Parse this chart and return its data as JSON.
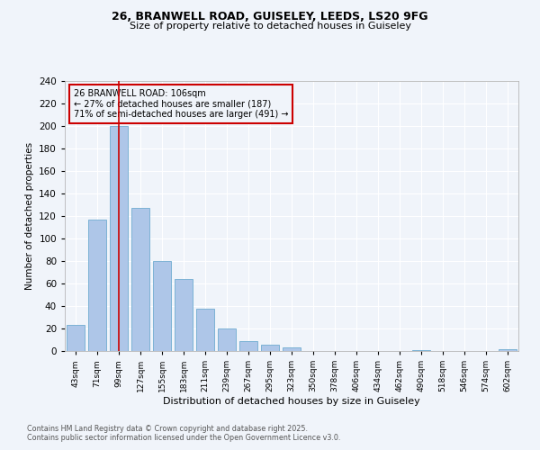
{
  "title1": "26, BRANWELL ROAD, GUISELEY, LEEDS, LS20 9FG",
  "title2": "Size of property relative to detached houses in Guiseley",
  "xlabel": "Distribution of detached houses by size in Guiseley",
  "ylabel": "Number of detached properties",
  "categories": [
    "43sqm",
    "71sqm",
    "99sqm",
    "127sqm",
    "155sqm",
    "183sqm",
    "211sqm",
    "239sqm",
    "267sqm",
    "295sqm",
    "323sqm",
    "350sqm",
    "378sqm",
    "406sqm",
    "434sqm",
    "462sqm",
    "490sqm",
    "518sqm",
    "546sqm",
    "574sqm",
    "602sqm"
  ],
  "values": [
    23,
    117,
    200,
    127,
    80,
    64,
    38,
    20,
    9,
    6,
    3,
    0,
    0,
    0,
    0,
    0,
    1,
    0,
    0,
    0,
    2
  ],
  "bar_color": "#aec6e8",
  "bar_edge_color": "#6fabd0",
  "vline_x_index": 2,
  "vline_color": "#cc0000",
  "annotation_text": "26 BRANWELL ROAD: 106sqm\n← 27% of detached houses are smaller (187)\n71% of semi-detached houses are larger (491) →",
  "annotation_box_edge_color": "#cc0000",
  "bg_color": "#f0f4fa",
  "grid_color": "#ffffff",
  "ylim": [
    0,
    240
  ],
  "yticks": [
    0,
    20,
    40,
    60,
    80,
    100,
    120,
    140,
    160,
    180,
    200,
    220,
    240
  ],
  "footer1": "Contains HM Land Registry data © Crown copyright and database right 2025.",
  "footer2": "Contains public sector information licensed under the Open Government Licence v3.0."
}
